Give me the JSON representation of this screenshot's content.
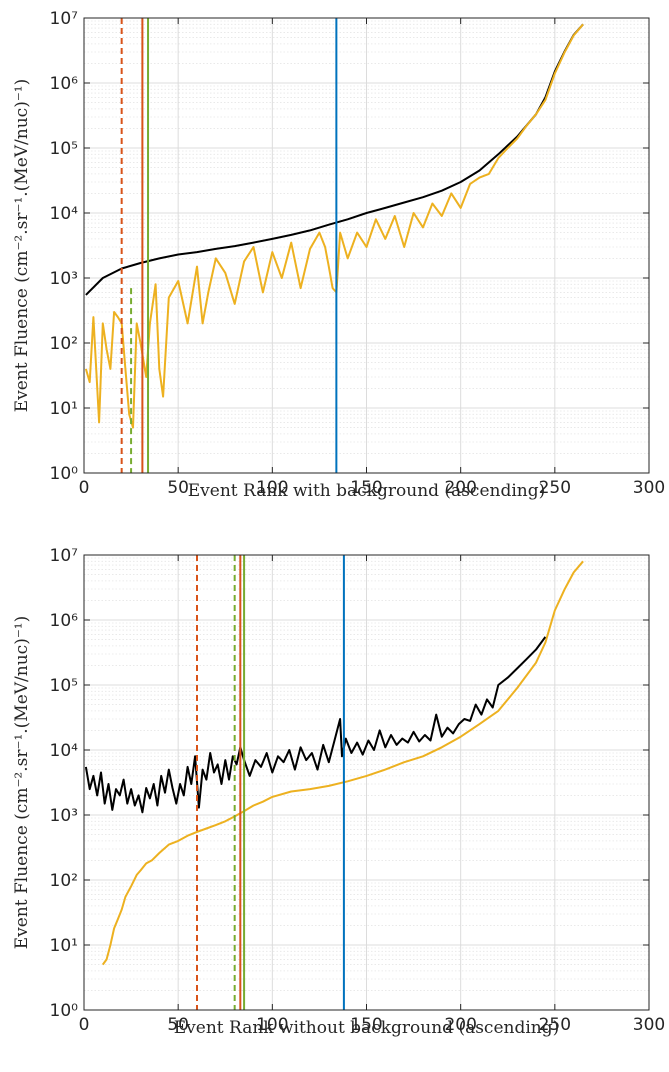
{
  "chart_data": [
    {
      "type": "line",
      "xlabel": "Event Rank with background (ascending)",
      "ylabel": "Event Fluence (cm⁻².sr⁻¹.(MeV/nuc)⁻¹)",
      "xlim": [
        0,
        300
      ],
      "ylim": [
        1,
        10000000
      ],
      "yscale": "log",
      "grid": true,
      "x_ticks": [
        "0",
        "50",
        "100",
        "150",
        "200",
        "250",
        "300"
      ],
      "y_ticks": [
        "10⁰",
        "10¹",
        "10²",
        "10³",
        "10⁴",
        "10⁵",
        "10⁶",
        "10⁷"
      ],
      "series": [
        {
          "color": "#000000",
          "x": [
            1,
            10,
            20,
            30,
            40,
            50,
            60,
            70,
            80,
            90,
            100,
            110,
            120,
            130,
            140,
            150,
            160,
            170,
            180,
            190,
            200,
            210,
            220,
            230,
            240,
            245,
            250,
            255,
            260,
            265
          ],
          "values": [
            550,
            1000,
            1400,
            1700,
            2000,
            2300,
            2500,
            2800,
            3100,
            3500,
            4000,
            4600,
            5400,
            6600,
            8000,
            10000,
            12000,
            14500,
            17500,
            22000,
            30000,
            45000,
            80000,
            150000,
            330000,
            600000,
            1500000,
            3000000,
            5500000,
            8000000
          ]
        },
        {
          "color": "#EDB120",
          "x": [
            1,
            3,
            5,
            8,
            10,
            12,
            14,
            16,
            18,
            20,
            22,
            24,
            26,
            28,
            30,
            33,
            35,
            38,
            40,
            42,
            45,
            50,
            55,
            60,
            63,
            66,
            70,
            75,
            80,
            85,
            90,
            95,
            100,
            105,
            110,
            115,
            120,
            125,
            128,
            130,
            132,
            134,
            136,
            140,
            145,
            150,
            155,
            160,
            165,
            170,
            175,
            180,
            185,
            190,
            195,
            200,
            205,
            210,
            215,
            220,
            225,
            230,
            235,
            240,
            245,
            250,
            255,
            260,
            265
          ],
          "values": [
            40,
            25,
            250,
            6,
            200,
            80,
            40,
            300,
            250,
            200,
            40,
            8,
            5,
            200,
            100,
            30,
            200,
            800,
            40,
            15,
            500,
            900,
            200,
            1500,
            200,
            600,
            2000,
            1200,
            400,
            1800,
            3000,
            600,
            2500,
            1000,
            3500,
            700,
            2800,
            5000,
            3000,
            1500,
            700,
            600,
            5000,
            2000,
            5000,
            3000,
            8000,
            4000,
            9000,
            3000,
            10000,
            6000,
            14000,
            9000,
            20000,
            12000,
            28000,
            35000,
            40000,
            70000,
            100000,
            140000,
            220000,
            330000,
            550000,
            1400000,
            2900000,
            5400000,
            8000000
          ]
        }
      ],
      "vlines": [
        {
          "x": 20,
          "color": "#D95319",
          "style": "dashed",
          "y_top": 10000000
        },
        {
          "x": 25,
          "color": "#77AC30",
          "style": "dashed",
          "y_top": 700
        },
        {
          "x": 31,
          "color": "#D95319",
          "style": "solid",
          "y_top": 10000000
        },
        {
          "x": 34,
          "color": "#77AC30",
          "style": "solid",
          "y_top": 10000000
        },
        {
          "x": 134,
          "color": "#0072BD",
          "style": "solid",
          "y_top": 10000000
        }
      ]
    },
    {
      "type": "line",
      "xlabel": "Event Rank without background (ascending)",
      "ylabel": "Event Fluence (cm⁻².sr⁻¹.(MeV/nuc)⁻¹)",
      "xlim": [
        0,
        300
      ],
      "ylim": [
        1,
        10000000
      ],
      "yscale": "log",
      "grid": true,
      "x_ticks": [
        "0",
        "50",
        "100",
        "150",
        "200",
        "250",
        "300"
      ],
      "y_ticks": [
        "10⁰",
        "10¹",
        "10²",
        "10³",
        "10⁴",
        "10⁵",
        "10⁶",
        "10⁷"
      ],
      "series": [
        {
          "color": "#000000",
          "x": [
            1,
            3,
            5,
            7,
            9,
            11,
            13,
            15,
            17,
            19,
            21,
            23,
            25,
            27,
            29,
            31,
            33,
            35,
            37,
            39,
            41,
            43,
            45,
            47,
            49,
            51,
            53,
            55,
            57,
            59,
            61,
            63,
            65,
            67,
            69,
            71,
            73,
            75,
            77,
            79,
            81,
            83,
            85,
            88,
            91,
            94,
            97,
            100,
            103,
            106,
            109,
            112,
            115,
            118,
            121,
            124,
            127,
            130,
            133,
            136,
            137,
            139,
            142,
            145,
            148,
            151,
            154,
            157,
            160,
            163,
            166,
            169,
            172,
            175,
            178,
            181,
            184,
            187,
            190,
            193,
            196,
            199,
            202,
            205,
            208,
            211,
            214,
            217,
            220,
            225,
            230,
            235,
            240,
            245
          ],
          "values": [
            5500,
            2500,
            4000,
            2000,
            4500,
            1500,
            3000,
            1200,
            2500,
            2000,
            3500,
            1500,
            2500,
            1400,
            2000,
            1100,
            2600,
            1800,
            3000,
            1400,
            4000,
            2200,
            5000,
            2600,
            1500,
            3000,
            2000,
            5500,
            3000,
            8000,
            1300,
            5000,
            3500,
            9000,
            4500,
            6000,
            3000,
            7000,
            3500,
            8000,
            6000,
            11000,
            7000,
            4000,
            7000,
            5500,
            9000,
            4500,
            8000,
            6500,
            10000,
            5000,
            11000,
            7000,
            9000,
            5000,
            12000,
            6500,
            14000,
            30000,
            8000,
            15000,
            9000,
            13000,
            8500,
            14000,
            10000,
            20000,
            11000,
            17000,
            12000,
            15000,
            13000,
            19000,
            13500,
            17000,
            14000,
            35000,
            16000,
            22000,
            18000,
            25000,
            30000,
            28000,
            50000,
            35000,
            60000,
            45000,
            100000,
            130000,
            180000,
            250000,
            350000,
            550000
          ]
        },
        {
          "color": "#EDB120",
          "x": [
            10,
            12,
            14,
            16,
            18,
            20,
            22,
            25,
            28,
            30,
            33,
            36,
            40,
            45,
            50,
            55,
            60,
            65,
            70,
            75,
            80,
            85,
            90,
            95,
            100,
            110,
            120,
            130,
            140,
            150,
            160,
            170,
            180,
            190,
            200,
            210,
            220,
            230,
            240,
            245,
            250,
            255,
            260,
            265
          ],
          "values": [
            5,
            6,
            10,
            18,
            25,
            35,
            55,
            80,
            120,
            140,
            180,
            200,
            260,
            350,
            400,
            480,
            550,
            620,
            700,
            800,
            950,
            1150,
            1400,
            1600,
            1900,
            2300,
            2500,
            2800,
            3300,
            4000,
            5000,
            6500,
            8000,
            11000,
            16000,
            25000,
            40000,
            90000,
            220000,
            450000,
            1400000,
            2900000,
            5400000,
            8000000
          ]
        }
      ],
      "vlines": [
        {
          "x": 60,
          "color": "#D95319",
          "style": "dashed",
          "y_top": 10000000
        },
        {
          "x": 80,
          "color": "#77AC30",
          "style": "dashed",
          "y_top": 10000000
        },
        {
          "x": 83,
          "color": "#D95319",
          "style": "solid",
          "y_top": 10000000
        },
        {
          "x": 85,
          "color": "#77AC30",
          "style": "solid",
          "y_top": 10000000
        },
        {
          "x": 138,
          "color": "#0072BD",
          "style": "solid",
          "y_top": 10000000
        }
      ]
    }
  ]
}
